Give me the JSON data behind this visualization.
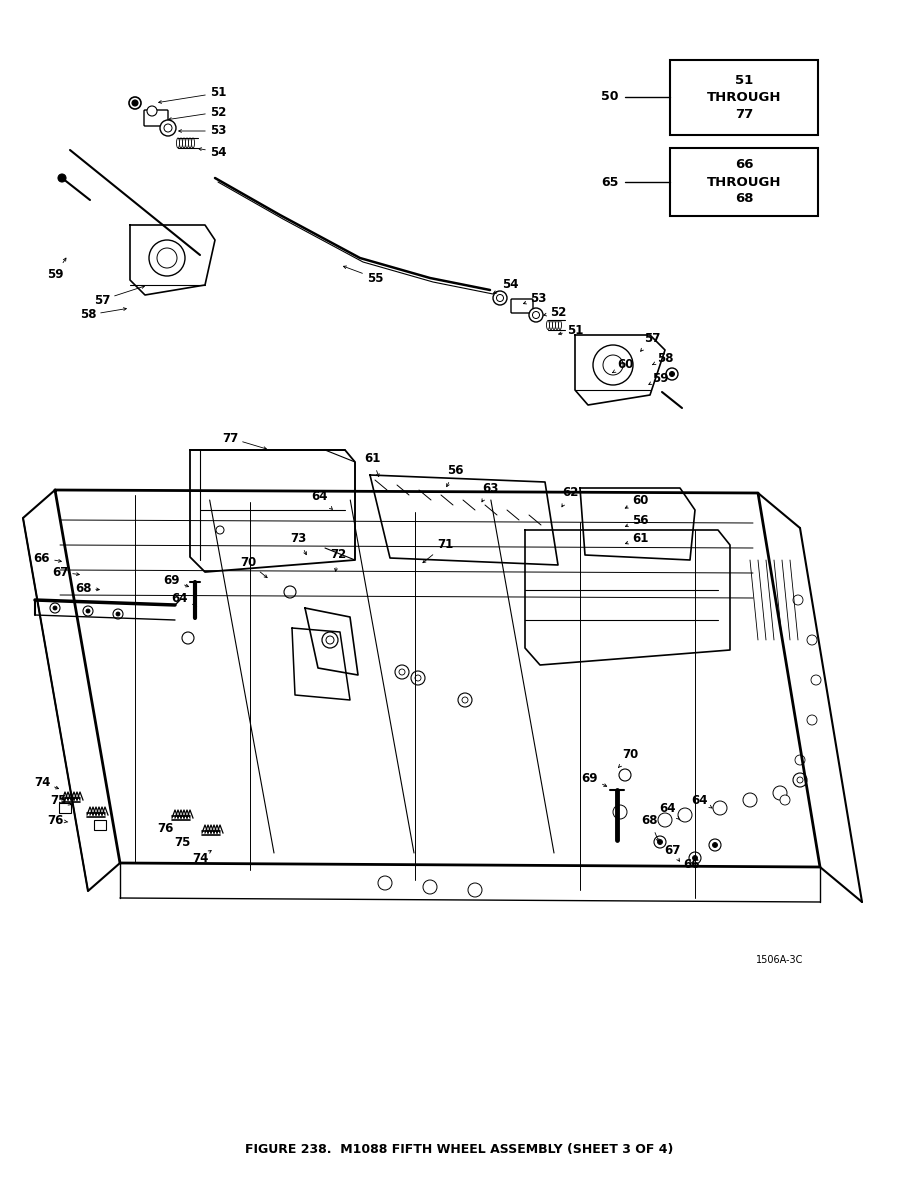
{
  "bg_color": "#ffffff",
  "line_color": "#000000",
  "figure_caption": "FIGURE 238.  M1088 FIFTH WHEEL ASSEMBLY (SHEET 3 OF 4)",
  "watermark": "1506A-3C",
  "ref_box1_label": "50",
  "ref_box1_content": "51\nTHROUGH\n77",
  "ref_box2_label": "65",
  "ref_box2_content": "66\nTHROUGH\n68",
  "dpi": 100,
  "fig_w": 9.18,
  "fig_h": 11.88
}
